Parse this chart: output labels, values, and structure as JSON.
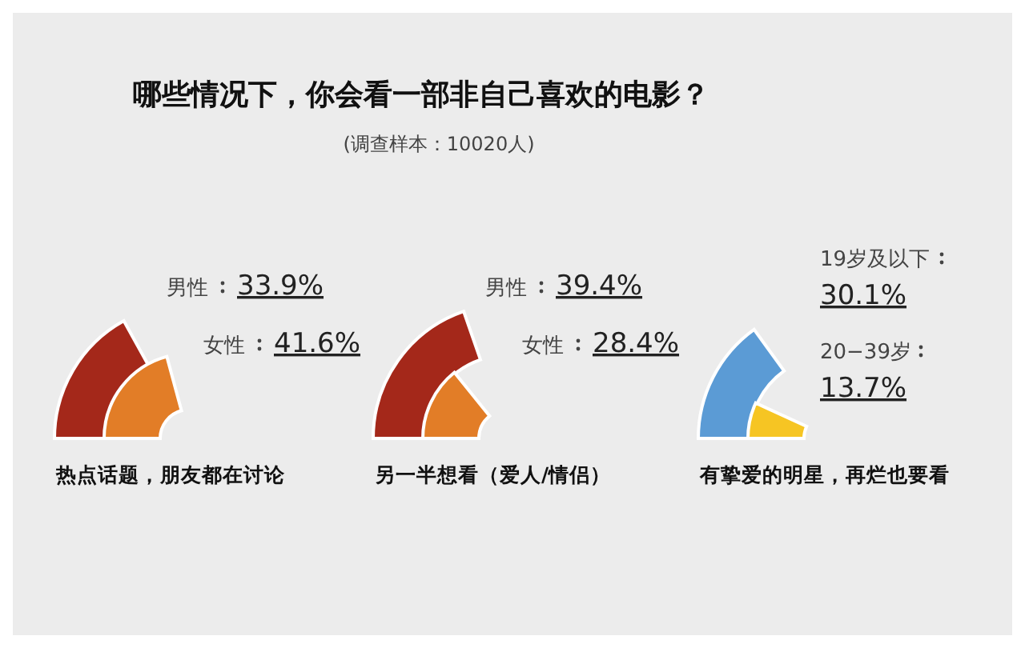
{
  "chart_data": [
    {
      "type": "other",
      "title": "哪些情况下，你会看一部非自己喜欢的电影？",
      "subtitle": "(调查样本：10020人)",
      "xlabel": "热点话题，朋友都在讨论",
      "categories": [
        "男性",
        "女性"
      ],
      "values": [
        33.9,
        41.6
      ],
      "value_labels": [
        "33.9%",
        "41.6%"
      ],
      "colors": [
        "#a4281a",
        "#e27d27"
      ]
    },
    {
      "type": "other",
      "xlabel": "另一半想看（爱人/情侣）",
      "categories": [
        "男性",
        "女性"
      ],
      "values": [
        39.4,
        28.4
      ],
      "value_labels": [
        "39.4%",
        "28.4%"
      ],
      "colors": [
        "#a4281a",
        "#e27d27"
      ]
    },
    {
      "type": "other",
      "xlabel": "有挚爱的明星，再烂也要看",
      "categories": [
        "19岁及以下",
        "20−39岁"
      ],
      "values": [
        30.1,
        13.7
      ],
      "value_labels": [
        "30.1%",
        "13.7%"
      ],
      "colors": [
        "#5b9bd5",
        "#f6c523"
      ]
    }
  ]
}
